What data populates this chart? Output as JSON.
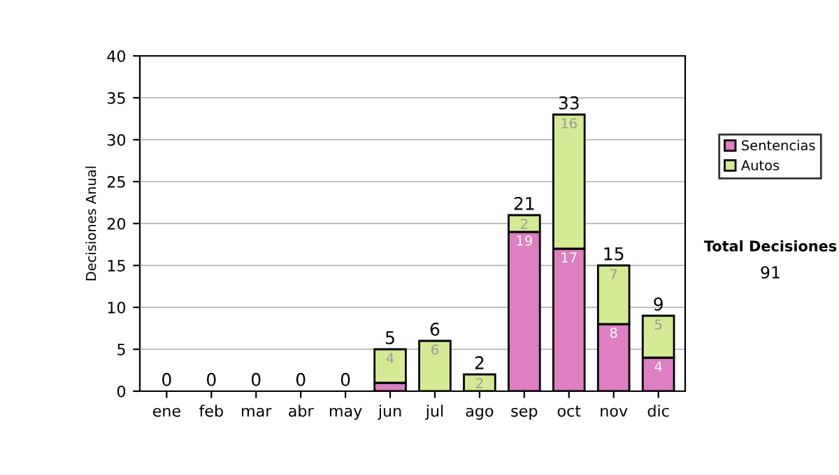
{
  "chart_data": {
    "type": "bar",
    "stacked": true,
    "ylabel": "Decisiones Anual",
    "categories": [
      "ene",
      "feb",
      "mar",
      "abr",
      "may",
      "jun",
      "jul",
      "ago",
      "sep",
      "oct",
      "nov",
      "dic"
    ],
    "series": [
      {
        "name": "Sentencias",
        "color": "#dd7fc0",
        "values": [
          0,
          0,
          0,
          0,
          0,
          1,
          0,
          0,
          19,
          17,
          8,
          4
        ],
        "value_labels": [
          null,
          null,
          null,
          null,
          null,
          null,
          null,
          null,
          "19",
          "17",
          "8",
          "4"
        ]
      },
      {
        "name": "Autos",
        "color": "#d4ea94",
        "values": [
          0,
          0,
          0,
          0,
          0,
          4,
          6,
          2,
          2,
          16,
          7,
          5
        ],
        "value_labels": [
          null,
          null,
          null,
          null,
          null,
          "4",
          "6",
          "2",
          "2",
          "16",
          "7",
          "5"
        ]
      }
    ],
    "totals": [
      "0",
      "0",
      "0",
      "0",
      "0",
      "5",
      "6",
      "2",
      "21",
      "33",
      "15",
      "9"
    ],
    "ylim": [
      0,
      40
    ],
    "yticks": [
      0,
      5,
      10,
      15,
      20,
      25,
      30,
      35,
      40
    ],
    "grid": "y",
    "legend": "right",
    "annotations": [
      "Total Decisiones",
      "91"
    ]
  }
}
